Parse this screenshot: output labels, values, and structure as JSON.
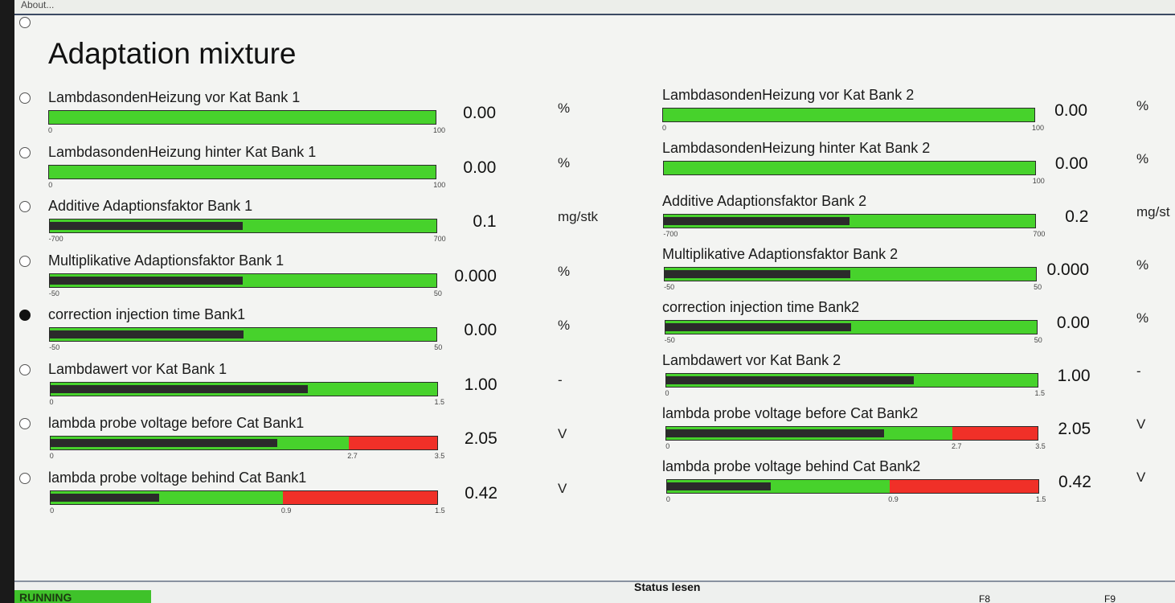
{
  "menu": {
    "about_label": "About..."
  },
  "page_title": "Adaptation mixture",
  "colors": {
    "bar_green": "#47d22c",
    "bar_red": "#f03028",
    "bar_fill": "#2b2b2b",
    "running_green": "#3fc22a"
  },
  "left_rows": [
    {
      "label": "LambdasondenHeizung vor Kat Bank 1",
      "value": "0.00",
      "unit": "%",
      "min_label": "0",
      "max_label": "100",
      "level": 0.0,
      "selected": false
    },
    {
      "label": "LambdasondenHeizung hinter Kat Bank 1",
      "value": "0.00",
      "unit": "%",
      "min_label": "0",
      "max_label": "100",
      "level": 0.0,
      "selected": false
    },
    {
      "label": "Additive Adaptionsfaktor Bank 1",
      "value": "0.1",
      "unit": "mg/stk",
      "min_label": "-700",
      "max_label": "700",
      "level": 0.5,
      "selected": false
    },
    {
      "label": "Multiplikative Adaptionsfaktor Bank 1",
      "value": "0.000",
      "unit": "%",
      "min_label": "-50",
      "max_label": "50",
      "level": 0.5,
      "selected": false
    },
    {
      "label": "correction injection time Bank1",
      "value": "0.00",
      "unit": "%",
      "min_label": "-50",
      "max_label": "50",
      "level": 0.5,
      "selected": true
    },
    {
      "label": "Lambdawert vor Kat Bank 1",
      "value": "1.00",
      "unit": "-",
      "min_label": "0",
      "max_label": "1.5",
      "level": 0.667,
      "selected": false
    },
    {
      "label": "lambda probe voltage before Cat Bank1",
      "value": "2.05",
      "unit": "V",
      "min_label": "0",
      "max_label": "3.5",
      "mid_label": "2.7",
      "level": 0.586,
      "red_from": 0.771,
      "selected": false
    },
    {
      "label": "lambda probe voltage behind Cat Bank1",
      "value": "0.42",
      "unit": "V",
      "min_label": "0",
      "max_label": "1.5",
      "mid_label": "0.9",
      "level": 0.28,
      "red_from": 0.6,
      "selected": false
    }
  ],
  "right_rows": [
    {
      "label": "LambdasondenHeizung vor Kat Bank 2",
      "value": "0.00",
      "unit": "%",
      "min_label": "0",
      "max_label": "100",
      "level": 0.0
    },
    {
      "label": "LambdasondenHeizung hinter Kat Bank 2",
      "value": "0.00",
      "unit": "%",
      "min_label": "",
      "max_label": "100",
      "level": 0.0
    },
    {
      "label": "Additive Adaptionsfaktor Bank 2",
      "value": "0.2",
      "unit": "mg/st",
      "min_label": "-700",
      "max_label": "700",
      "level": 0.5
    },
    {
      "label": "Multiplikative Adaptionsfaktor Bank 2",
      "value": "0.000",
      "unit": "%",
      "min_label": "-50",
      "max_label": "50",
      "level": 0.5
    },
    {
      "label": "correction injection time Bank2",
      "value": "0.00",
      "unit": "%",
      "min_label": "-50",
      "max_label": "50",
      "level": 0.5
    },
    {
      "label": "Lambdawert vor Kat Bank 2",
      "value": "1.00",
      "unit": "-",
      "min_label": "0",
      "max_label": "1.5",
      "level": 0.667
    },
    {
      "label": "lambda probe voltage before Cat Bank2",
      "value": "2.05",
      "unit": "V",
      "min_label": "0",
      "max_label": "3.5",
      "mid_label": "2.7",
      "level": 0.586,
      "red_from": 0.771
    },
    {
      "label": "lambda probe voltage behind Cat Bank2",
      "value": "0.42",
      "unit": "V",
      "min_label": "0",
      "max_label": "1.5",
      "mid_label": "0.9",
      "level": 0.28,
      "red_from": 0.6
    }
  ],
  "status_bar": {
    "running_label": "RUNNING",
    "status_label": "Status lesen",
    "f8_label": "F8",
    "f9_label": "F9"
  }
}
